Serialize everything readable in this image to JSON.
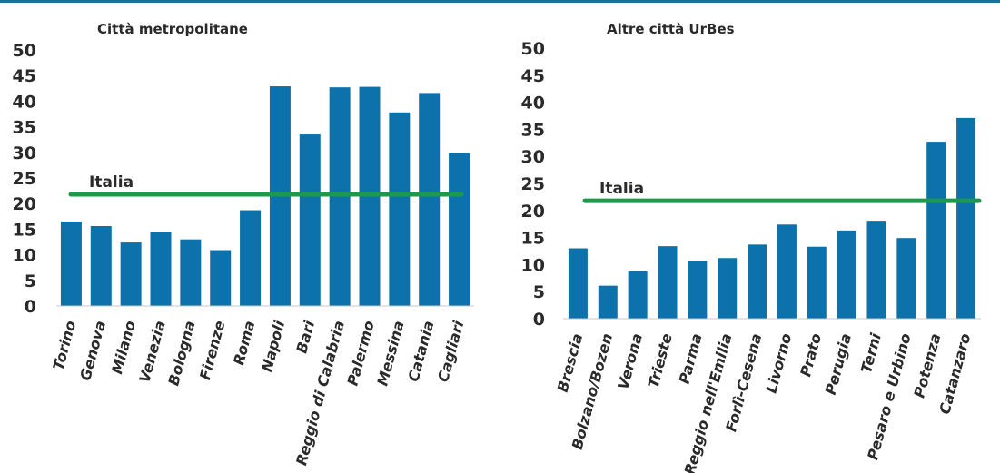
{
  "chart_data": [
    {
      "type": "bar",
      "title": "Città metropolitane",
      "categories": [
        "Torino",
        "Genova",
        "Milano",
        "Venezia",
        "Bologna",
        "Firenze",
        "Roma",
        "Napoli",
        "Bari",
        "Reggio di Calabria",
        "Palermo",
        "Messina",
        "Catania",
        "Cagliari"
      ],
      "values": [
        16.5,
        15.6,
        12.4,
        14.4,
        13.0,
        10.9,
        18.7,
        42.9,
        33.5,
        42.7,
        42.8,
        37.8,
        41.6,
        29.9
      ],
      "ylim": [
        0,
        50
      ],
      "yticks": [
        "0",
        "5",
        "10",
        "15",
        "20",
        "25",
        "30",
        "35",
        "40",
        "45",
        "50"
      ],
      "reference_line": {
        "label": "Italia",
        "value": 21.8
      },
      "bar_color": "#0d71ab",
      "line_color": "#1c9a4b",
      "grid": false
    },
    {
      "type": "bar",
      "title": "Altre città UrBes",
      "categories": [
        "Brescia",
        "Bolzano/Bozen",
        "Verona",
        "Trieste",
        "Parma",
        "Reggio nell'Emilia",
        "Forlì-Cesena",
        "Livorno",
        "Prato",
        "Perugia",
        "Terni",
        "Pesaro e Urbino",
        "Potenza",
        "Catanzaro"
      ],
      "values": [
        13.0,
        6.1,
        8.8,
        13.4,
        10.7,
        11.2,
        13.7,
        17.4,
        13.3,
        16.3,
        18.1,
        14.9,
        32.7,
        37.1
      ],
      "ylim": [
        0,
        50
      ],
      "yticks": [
        "0",
        "5",
        "10",
        "15",
        "20",
        "25",
        "30",
        "35",
        "40",
        "45",
        "50"
      ],
      "reference_line": {
        "label": "Italia",
        "value": 21.8
      },
      "bar_color": "#0d71ab",
      "line_color": "#1c9a4b",
      "grid": false
    }
  ]
}
